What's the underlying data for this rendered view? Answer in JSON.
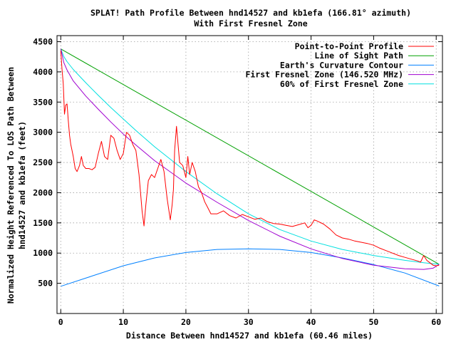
{
  "chart_data": {
    "type": "line",
    "title": "SPLAT! Path Profile Between hnd14527 and kb1efa (166.81° azimuth)",
    "subtitle": "With First Fresnel Zone",
    "xlabel": "Distance Between hnd14527 and kb1efa (60.46 miles)",
    "ylabel_line1": "Normalized Height Referenced To LOS Path Between",
    "ylabel_line2": "hnd14527 and kb1efa (feet)",
    "xlim": [
      -0.6,
      61.0
    ],
    "ylim": [
      0,
      4600
    ],
    "x_ticks": [
      0,
      10,
      20,
      30,
      40,
      50,
      60
    ],
    "x_tick_labels": [
      "0",
      "10",
      "20",
      "30",
      "40",
      "50",
      "60"
    ],
    "y_ticks": [
      500,
      1000,
      1500,
      2000,
      2500,
      3000,
      3500,
      4000,
      4500
    ],
    "y_tick_labels": [
      "500",
      "1000",
      "1500",
      "2000",
      "2500",
      "3000",
      "3500",
      "4000",
      "4500"
    ],
    "grid": true,
    "legend_position": "top-right",
    "series": [
      {
        "name": "Point-to-Point Profile",
        "color": "#ff0000",
        "x": [
          0,
          0.2,
          0.4,
          0.6,
          0.8,
          1.0,
          1.2,
          1.4,
          1.6,
          1.8,
          2.0,
          2.3,
          2.6,
          3.0,
          3.3,
          3.6,
          4.0,
          4.5,
          5.0,
          5.5,
          6.0,
          6.5,
          7.0,
          7.5,
          8.0,
          8.5,
          9.0,
          9.5,
          10.0,
          10.5,
          11.0,
          11.5,
          12.0,
          12.5,
          13.0,
          13.3,
          13.6,
          14.0,
          14.5,
          15.0,
          15.5,
          16.0,
          16.5,
          17.0,
          17.5,
          17.8,
          18.0,
          18.2,
          18.5,
          19.0,
          19.5,
          20.0,
          20.3,
          20.6,
          21.0,
          21.5,
          22.0,
          22.5,
          23.0,
          23.5,
          24.0,
          25.0,
          26.0,
          27.0,
          28.0,
          29.0,
          30.0,
          31.0,
          32.0,
          33.0,
          34.0,
          35.0,
          36.0,
          37.0,
          38.0,
          39.0,
          39.5,
          40.0,
          40.5,
          41.0,
          42.0,
          43.0,
          44.0,
          45.0,
          46.0,
          47.0,
          48.0,
          49.0,
          50.0,
          51.0,
          52.0,
          53.0,
          54.0,
          55.0,
          56.0,
          57.0,
          57.5,
          58.0,
          58.5,
          59.0,
          59.5,
          60.0,
          60.46
        ],
        "y": [
          4350,
          4050,
          3800,
          3300,
          3450,
          3470,
          3200,
          2950,
          2800,
          2700,
          2600,
          2400,
          2350,
          2450,
          2600,
          2450,
          2400,
          2400,
          2380,
          2420,
          2650,
          2850,
          2600,
          2550,
          2950,
          2900,
          2700,
          2550,
          2650,
          3000,
          2950,
          2800,
          2700,
          2300,
          1700,
          1450,
          1800,
          2200,
          2300,
          2250,
          2400,
          2550,
          2350,
          1900,
          1550,
          1800,
          2050,
          2700,
          3100,
          2500,
          2450,
          2250,
          2600,
          2300,
          2500,
          2350,
          2100,
          2000,
          1850,
          1750,
          1650,
          1650,
          1700,
          1620,
          1580,
          1640,
          1600,
          1560,
          1580,
          1520,
          1490,
          1480,
          1460,
          1440,
          1470,
          1500,
          1420,
          1460,
          1550,
          1530,
          1480,
          1400,
          1300,
          1250,
          1230,
          1200,
          1180,
          1160,
          1130,
          1080,
          1040,
          1000,
          960,
          930,
          900,
          870,
          850,
          960,
          880,
          840,
          800,
          790,
          800
        ]
      },
      {
        "name": "Line of Sight Path",
        "color": "#00a000",
        "x": [
          0,
          60.46
        ],
        "y": [
          4380,
          815
        ]
      },
      {
        "name": "Earth's Curvature Contour",
        "color": "#0080ff",
        "x": [
          0,
          5,
          10,
          15,
          20,
          25,
          30,
          35,
          40,
          45,
          50,
          55,
          60.46
        ],
        "y": [
          450,
          620,
          790,
          920,
          1010,
          1060,
          1070,
          1060,
          1010,
          920,
          810,
          670,
          455
        ]
      },
      {
        "name": "First Fresnel Zone (146.520 MHz)",
        "color": "#a000d0",
        "x": [
          0,
          0.5,
          1,
          2,
          4,
          6,
          8,
          10,
          12,
          15,
          20,
          25,
          30,
          35,
          40,
          45,
          50,
          55,
          58,
          59.5,
          60.46
        ],
        "y": [
          4380,
          4150,
          4030,
          3850,
          3600,
          3380,
          3170,
          2970,
          2790,
          2530,
          2160,
          1840,
          1540,
          1280,
          1070,
          910,
          800,
          740,
          730,
          750,
          815
        ]
      },
      {
        "name": "60% of First Fresnel Zone",
        "color": "#00e0e0",
        "x": [
          0,
          0.5,
          1,
          2,
          4,
          6,
          8,
          10,
          12,
          15,
          20,
          25,
          30,
          35,
          40,
          45,
          50,
          55,
          58,
          59.5,
          60.46
        ],
        "y": [
          4380,
          4250,
          4170,
          4040,
          3820,
          3610,
          3410,
          3220,
          3030,
          2760,
          2350,
          1980,
          1650,
          1390,
          1200,
          1060,
          960,
          880,
          840,
          825,
          815
        ]
      }
    ]
  }
}
